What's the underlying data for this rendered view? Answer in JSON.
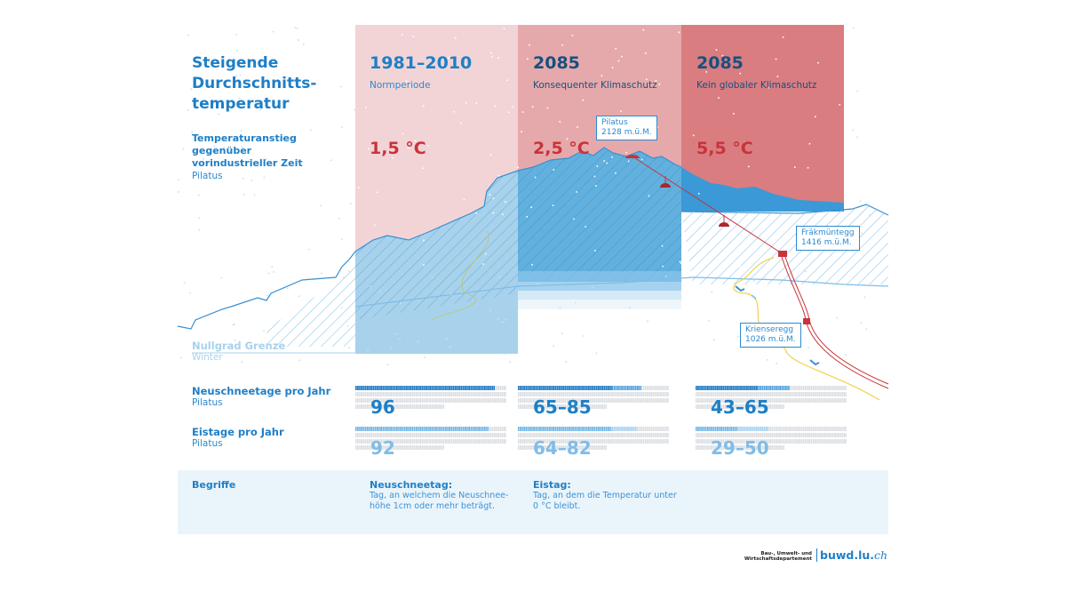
{
  "header": {
    "title": "Steigende Durchschnitts-temperatur",
    "title_lines": [
      "Steigende",
      "Durchschnitts-",
      "temperatur"
    ],
    "subtitle_lines": [
      "Temperaturanstieg",
      "gegenüber",
      "vorindustrieller Zeit"
    ],
    "location": "Pilatus"
  },
  "columns": [
    {
      "year": "1981–2010",
      "desc": "Normperiode",
      "temp": "1,5 °C",
      "bg_color": "#f2d4d6",
      "year_color": "#1e7fc7",
      "desc_color": "#2b8ad0"
    },
    {
      "year": "2085",
      "desc": "Konsequenter Klimaschutz",
      "temp": "2,5 °C",
      "bg_color": "#e6a9ab",
      "year_color": "#17507e",
      "desc_color": "#17507e"
    },
    {
      "year": "2085",
      "desc": "Kein globaler Klimaschutz",
      "temp": "5,5 °C",
      "bg_color": "#d97d81",
      "year_color": "#17507e",
      "desc_color": "#17507e"
    }
  ],
  "callouts": {
    "pilatus": {
      "name": "Pilatus",
      "altitude": "2128 m.ü.M."
    },
    "fraekmuentegg": {
      "name": "Fräkmüntegg",
      "altitude": "1416 m.ü.M."
    },
    "krienseregg": {
      "name": "Krienseregg",
      "altitude": "1026 m.ü.M."
    }
  },
  "zero_line": {
    "label": "Nullgrad Grenze",
    "sub": "Winter"
  },
  "rows": [
    {
      "title": "Neuschneetage pro Jahr",
      "sub": "Pilatus",
      "values": [
        {
          "label": "96",
          "min": 96,
          "max": 96
        },
        {
          "label": "65–85",
          "min": 65,
          "max": 85
        },
        {
          "label": "43–65",
          "min": 43,
          "max": 65
        }
      ],
      "color": "#1e7fc7"
    },
    {
      "title": "Eistage pro Jahr",
      "sub": "Pilatus",
      "values": [
        {
          "label": "92",
          "min": 92,
          "max": 92
        },
        {
          "label": "64–82",
          "min": 64,
          "max": 82
        },
        {
          "label": "29–50",
          "min": 29,
          "max": 50
        }
      ],
      "color": "#7fbde8"
    }
  ],
  "glossary": {
    "title": "Begriffe",
    "terms": [
      {
        "term": "Neuschneetag:",
        "lines": [
          "Tag, an welchem die Neuschnee-",
          "höhe 1cm oder mehr beträgt."
        ]
      },
      {
        "term": "Eistag:",
        "lines": [
          "Tag, an dem die Temperatur unter",
          "0 °C bleibt."
        ]
      }
    ]
  },
  "footer": {
    "department_lines": [
      "Bau-, Umwelt- und",
      "Wirtschaftsdepartement"
    ],
    "logo_main": "buwd.lu.",
    "logo_tld": "ch"
  },
  "colors": {
    "brand_blue": "#1e7fc7",
    "temp_red": "#c9333a",
    "mountain_light": "#a8d2ec",
    "mountain_mid": "#62b0dd",
    "mountain_dark": "#3a99d6",
    "cable": "#c9333a",
    "trail": "#f0d24a"
  }
}
